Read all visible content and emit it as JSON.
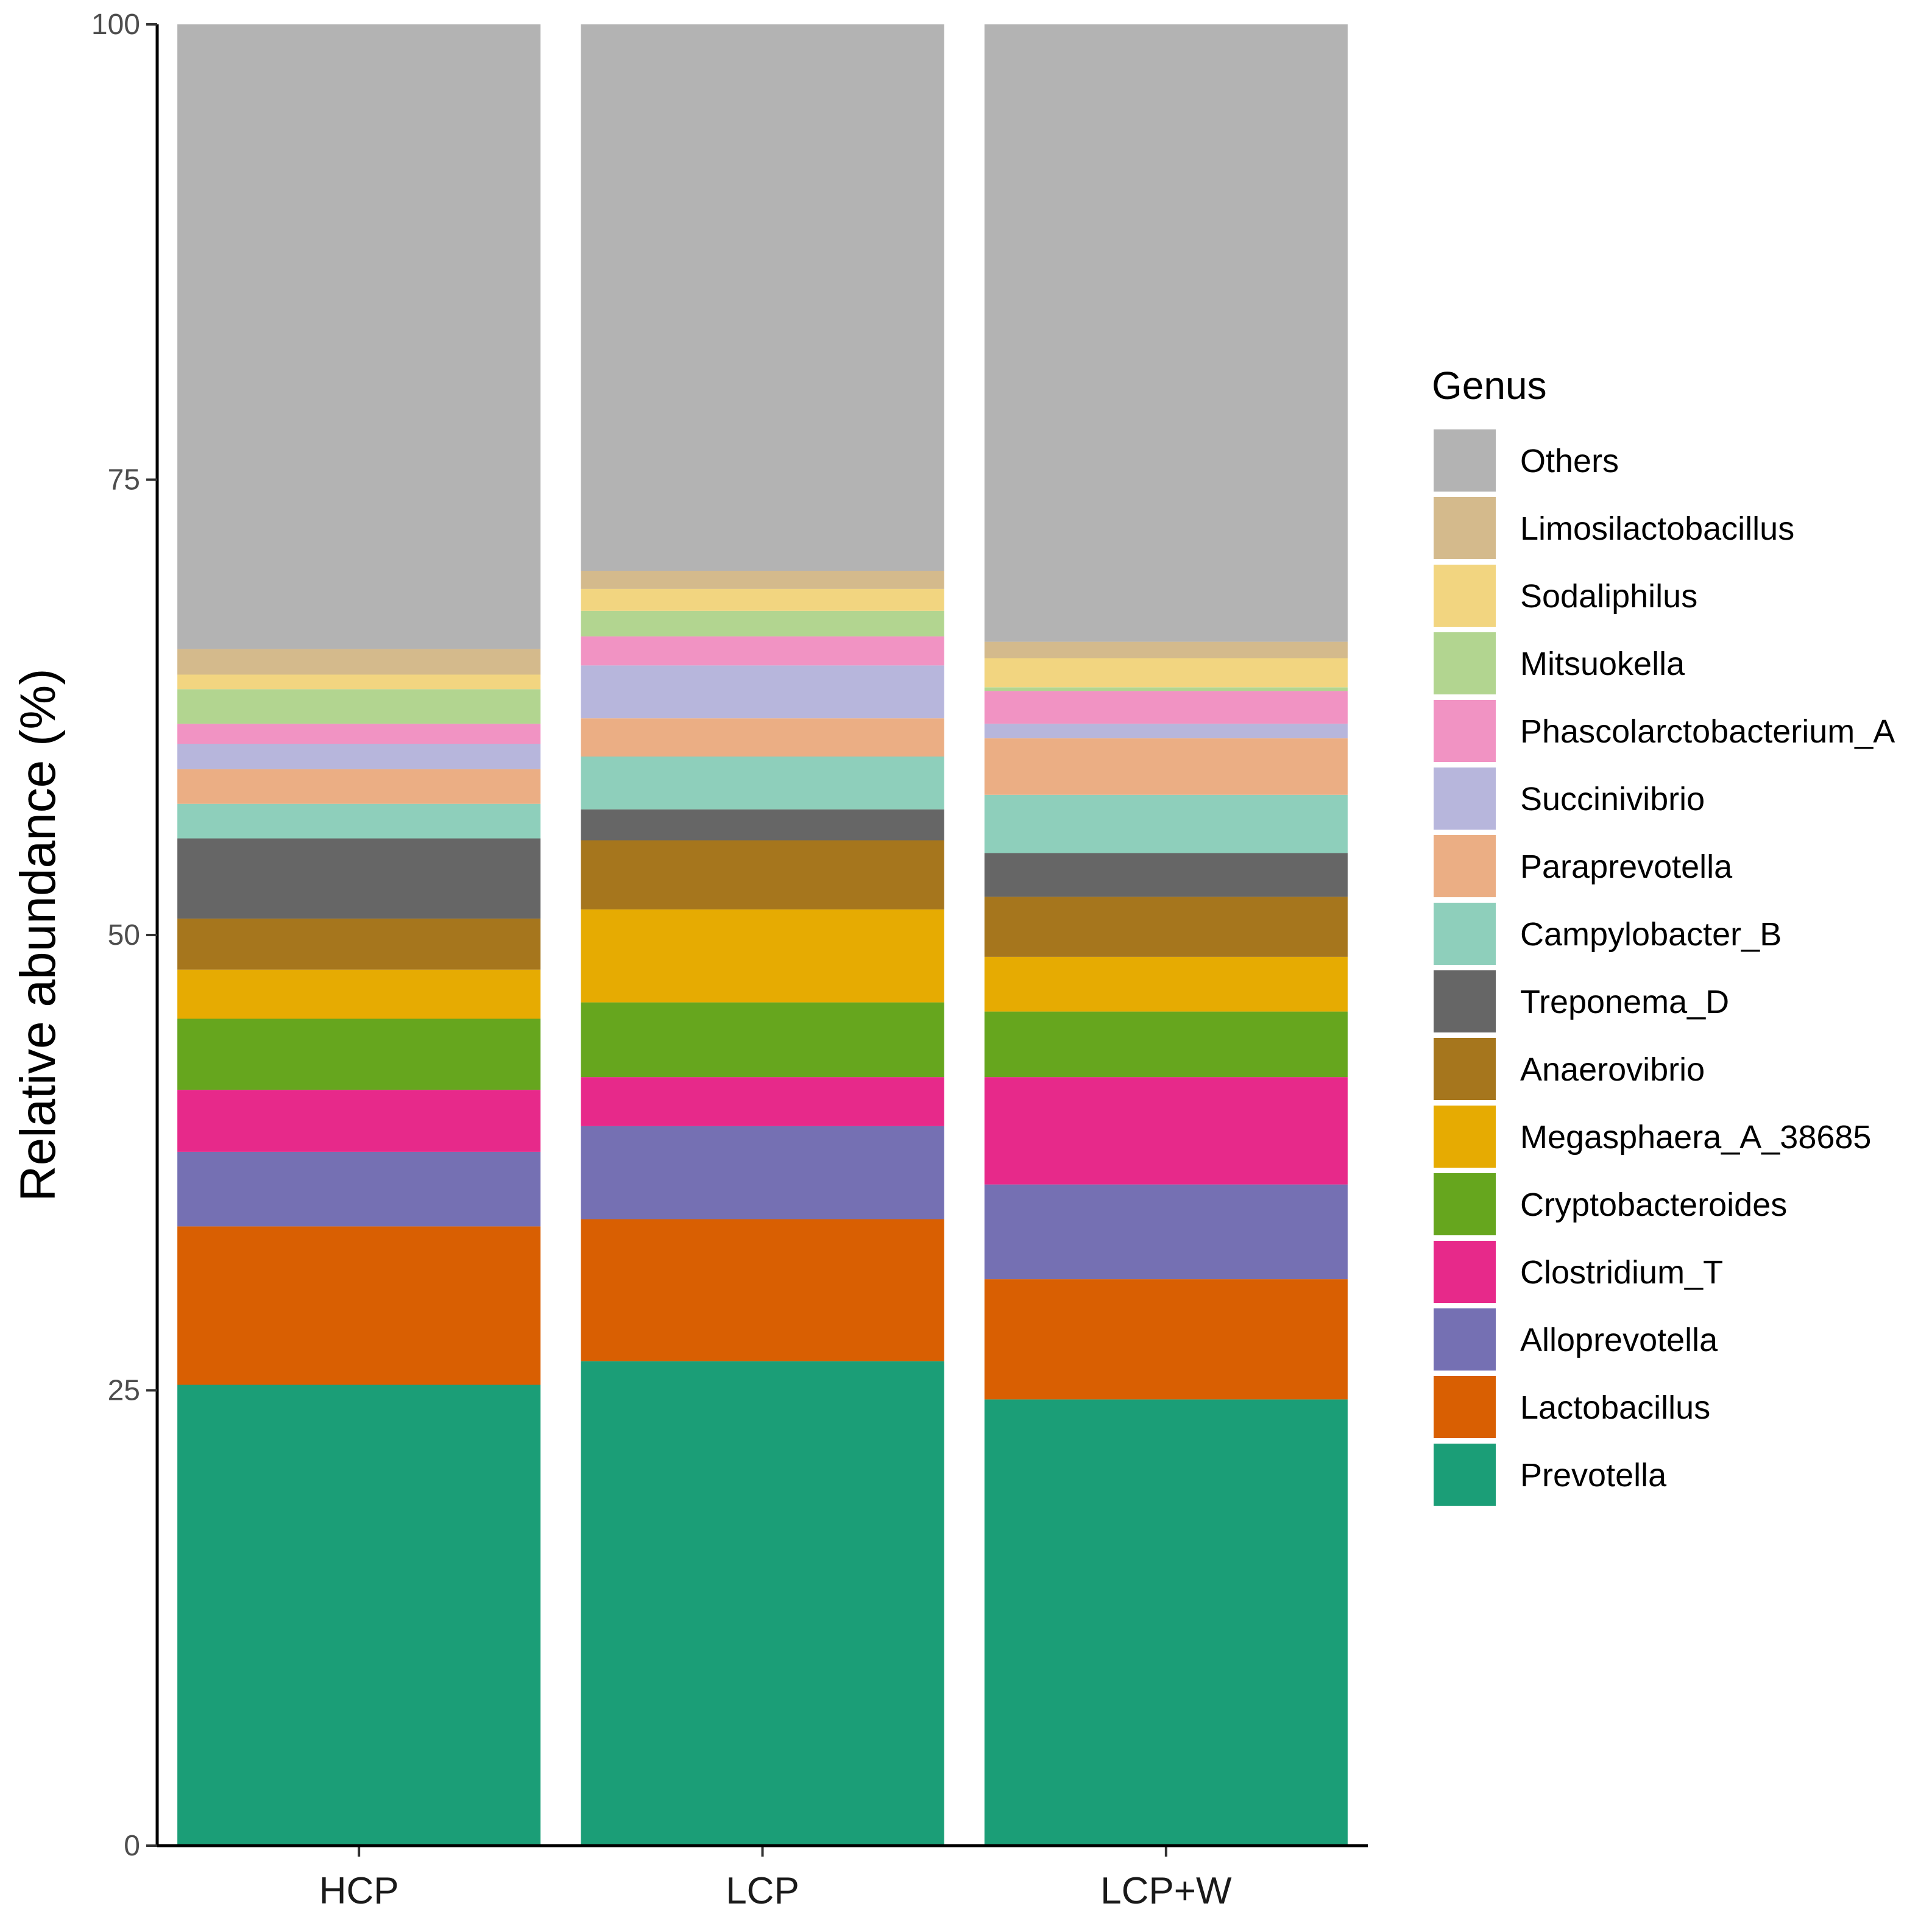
{
  "chart_data": {
    "type": "bar",
    "stacked": true,
    "categories": [
      "HCP",
      "LCP",
      "LCP+W"
    ],
    "ylabel": "Relative abundance (%)",
    "xlabel": "",
    "ylim": [
      0,
      100
    ],
    "yticks": [
      "0",
      "25",
      "50",
      "75",
      "100"
    ],
    "legend_title": "Genus",
    "legend_position": "right",
    "series": [
      {
        "name": "Prevotella",
        "color": "#1b9e77",
        "values": [
          25.3,
          26.6,
          24.5
        ]
      },
      {
        "name": "Lactobacillus",
        "color": "#d95f02",
        "values": [
          8.7,
          7.8,
          6.6
        ]
      },
      {
        "name": "Alloprevotella",
        "color": "#7570b3",
        "values": [
          4.1,
          5.1,
          5.2
        ]
      },
      {
        "name": "Clostridium_T",
        "color": "#e7298a",
        "values": [
          3.4,
          2.7,
          5.9
        ]
      },
      {
        "name": "Cryptobacteroides",
        "color": "#66a61e",
        "values": [
          3.9,
          4.1,
          3.6
        ]
      },
      {
        "name": "Megasphaera_A_38685",
        "color": "#e6ab02",
        "values": [
          2.7,
          5.1,
          3.0
        ]
      },
      {
        "name": "Anaerovibrio",
        "color": "#a6761d",
        "values": [
          2.8,
          3.8,
          3.3
        ]
      },
      {
        "name": "Treponema_D",
        "color": "#666666",
        "values": [
          4.4,
          1.7,
          2.4
        ]
      },
      {
        "name": "Campylobacter_B",
        "color": "#8ecfbb",
        "values": [
          1.9,
          2.9,
          3.2
        ]
      },
      {
        "name": "Paraprevotella",
        "color": "#ebae84",
        "values": [
          1.9,
          2.1,
          3.1
        ]
      },
      {
        "name": "Succinivibrio",
        "color": "#b7b6dc",
        "values": [
          1.4,
          2.9,
          0.8
        ]
      },
      {
        "name": "Phascolarctobacterium_A",
        "color": "#f193c3",
        "values": [
          1.1,
          1.6,
          1.8
        ]
      },
      {
        "name": "Mitsuokella",
        "color": "#b2d590",
        "values": [
          1.9,
          1.4,
          0.2
        ]
      },
      {
        "name": "Sodaliphilus",
        "color": "#f2d580",
        "values": [
          0.8,
          1.2,
          1.6
        ]
      },
      {
        "name": "Limosilactobacillus",
        "color": "#d4ba8c",
        "values": [
          1.4,
          1.0,
          0.9
        ]
      },
      {
        "name": "Others",
        "color": "#b3b3b3",
        "values": [
          34.3,
          30.0,
          33.9
        ]
      }
    ]
  }
}
